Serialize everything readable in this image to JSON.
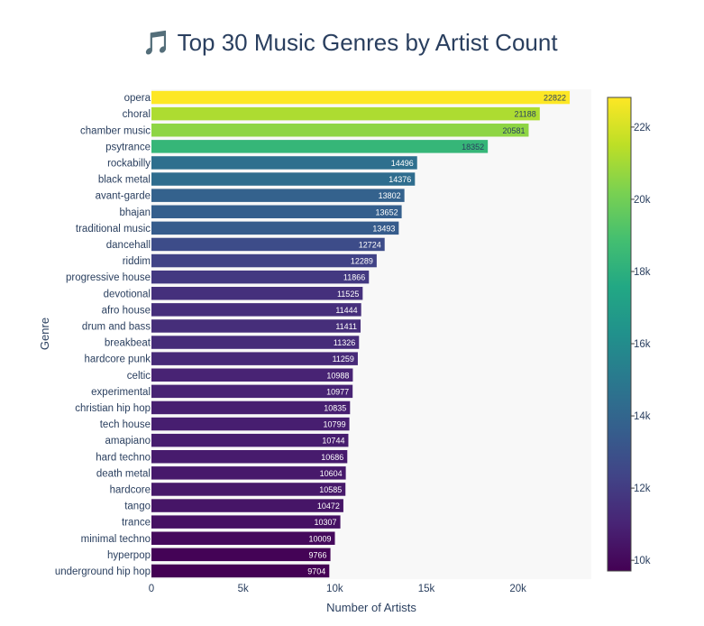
{
  "chart_data": {
    "type": "bar",
    "orientation": "horizontal",
    "title": "🎵 Top 30 Music Genres by Artist Count",
    "xlabel": "Number of Artists",
    "ylabel": "Genre",
    "xlim": [
      0,
      24000
    ],
    "x_ticks": [
      {
        "value": 0,
        "label": "0"
      },
      {
        "value": 5000,
        "label": "5k"
      },
      {
        "value": 10000,
        "label": "10k"
      },
      {
        "value": 15000,
        "label": "15k"
      },
      {
        "value": 20000,
        "label": "20k"
      }
    ],
    "categories": [
      "opera",
      "choral",
      "chamber music",
      "psytrance",
      "rockabilly",
      "black metal",
      "avant-garde",
      "bhajan",
      "traditional music",
      "dancehall",
      "riddim",
      "progressive house",
      "devotional",
      "afro house",
      "drum and bass",
      "breakbeat",
      "hardcore punk",
      "celtic",
      "experimental",
      "christian hip hop",
      "tech house",
      "amapiano",
      "hard techno",
      "death metal",
      "hardcore",
      "tango",
      "trance",
      "minimal techno",
      "hyperpop",
      "underground hip hop"
    ],
    "values": [
      22822,
      21188,
      20581,
      18352,
      14496,
      14376,
      13802,
      13652,
      13493,
      12724,
      12289,
      11866,
      11525,
      11444,
      11411,
      11326,
      11259,
      10988,
      10977,
      10835,
      10799,
      10744,
      10686,
      10604,
      10585,
      10472,
      10307,
      10009,
      9766,
      9704
    ],
    "data_labels": [
      "22822",
      "21188",
      "20581",
      "18352",
      "14496",
      "14376",
      "13802",
      "13652",
      "13493",
      "12724",
      "12289",
      "11866",
      "11525",
      "11444",
      "11411",
      "11326",
      "11259",
      "10988",
      "10977",
      "10835",
      "10799",
      "10744",
      "10686",
      "10604",
      "10585",
      "10472",
      "10307",
      "10009",
      "9766",
      "9704"
    ],
    "colorscale": "Viridis",
    "colorbar": {
      "range": [
        9704,
        22822
      ],
      "ticks": [
        {
          "value": 10000,
          "label": "10k"
        },
        {
          "value": 12000,
          "label": "12k"
        },
        {
          "value": 14000,
          "label": "14k"
        },
        {
          "value": 16000,
          "label": "16k"
        },
        {
          "value": 18000,
          "label": "18k"
        },
        {
          "value": 20000,
          "label": "20k"
        },
        {
          "value": 22000,
          "label": "22k"
        }
      ]
    },
    "grid": false,
    "plot_background": "#f8f8f8",
    "text_color": "#2a3f5f"
  }
}
